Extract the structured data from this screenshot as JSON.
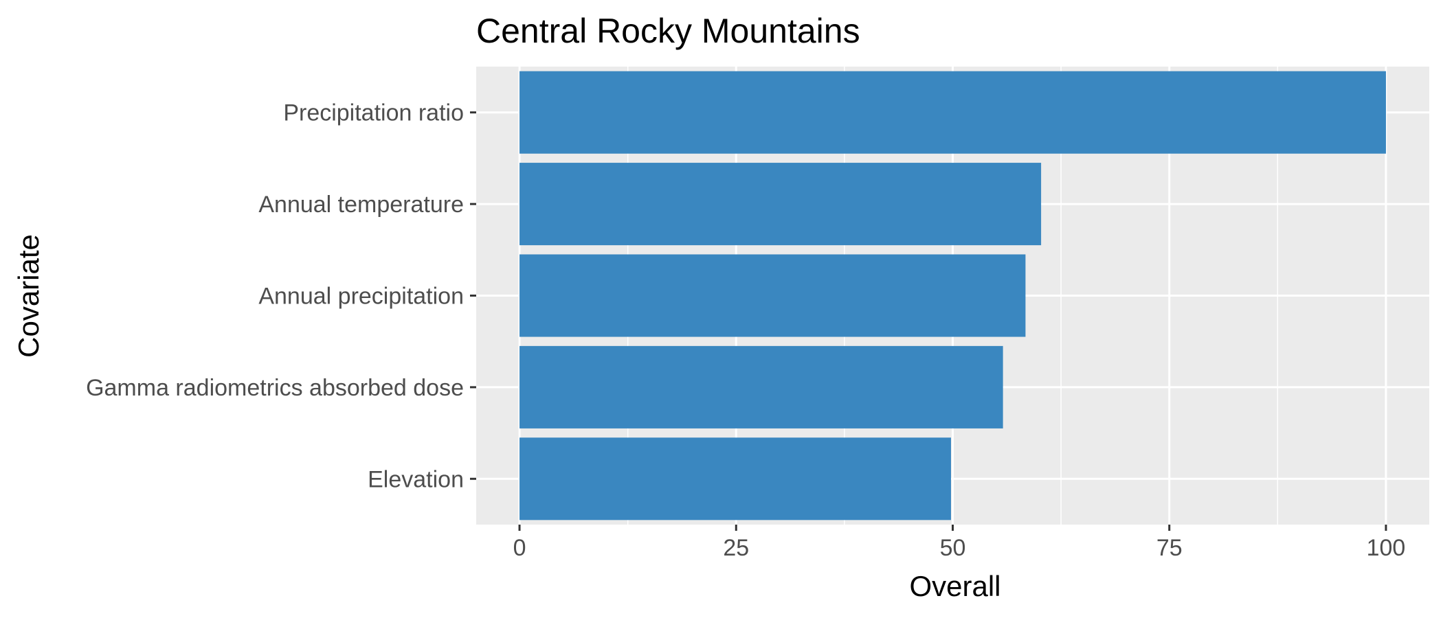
{
  "chart_data": {
    "type": "bar",
    "orientation": "horizontal",
    "title": "Central Rocky Mountains",
    "xlabel": "Overall",
    "ylabel": "Covariate",
    "categories": [
      "Precipitation ratio",
      "Annual temperature",
      "Annual precipitation",
      "Gamma radiometrics absorbed dose",
      "Elevation"
    ],
    "values": [
      100,
      60.2,
      58.4,
      55.8,
      49.8
    ],
    "xlim": [
      -5,
      105
    ],
    "xticks": [
      0,
      25,
      50,
      75,
      100
    ],
    "xtick_labels": [
      "0",
      "25",
      "50",
      "75",
      "100"
    ],
    "grid": true,
    "colors": {
      "bar": "#3a87c0",
      "panel_background": "#ebebeb",
      "gridline": "#ffffff"
    }
  }
}
